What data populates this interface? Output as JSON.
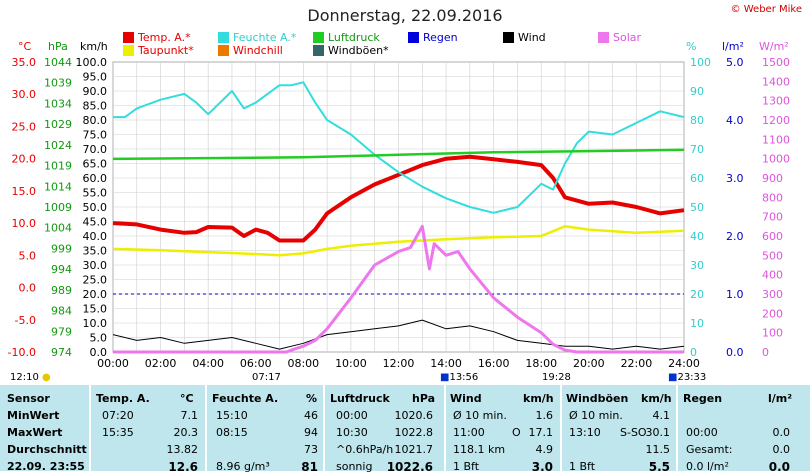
{
  "header": {
    "title": "Donnerstag, 22.09.2016",
    "copyright": "© Weber Mike"
  },
  "legend": [
    {
      "label": "Temp. A.*",
      "color": "#e60000"
    },
    {
      "label": "Feuchte A.*",
      "color": "#33dddd"
    },
    {
      "label": "Luftdruck",
      "color": "#22cc22"
    },
    {
      "label": "Regen",
      "color": "#0000dd"
    },
    {
      "label": "Wind",
      "color": "#000000"
    },
    {
      "label": "Solar",
      "color": "#ee77ee"
    },
    {
      "label": "Taupunkt*",
      "color": "#eeee00"
    },
    {
      "label": "Windchill",
      "color": "#ee7700"
    },
    {
      "label": "Windböen*",
      "color": "#336666"
    }
  ],
  "units": {
    "temp": "°C",
    "pressure": "hPa",
    "wind": "km/h",
    "humidity": "%",
    "rain": "l/m²",
    "solar": "W/m²"
  },
  "axes": {
    "temp_ticks": [
      "35.0",
      "30.0",
      "25.0",
      "20.0",
      "15.0",
      "10.0",
      "5.0",
      "0.0",
      "-5.0",
      "-10.0"
    ],
    "pressure_ticks": [
      "1044",
      "1039",
      "1034",
      "1029",
      "1024",
      "1019",
      "1014",
      "1009",
      "1004",
      "999",
      "994",
      "989",
      "984",
      "979",
      "974"
    ],
    "wind_ticks": [
      "100.0",
      "95.0",
      "90.0",
      "85.0",
      "80.0",
      "75.0",
      "70.0",
      "65.0",
      "60.0",
      "55.0",
      "50.0",
      "45.0",
      "40.0",
      "35.0",
      "30.0",
      "25.0",
      "20.0",
      "15.0",
      "10.0",
      "5.0",
      "0.0"
    ],
    "humidity_ticks": [
      "100",
      "90",
      "80",
      "70",
      "60",
      "50",
      "40",
      "30",
      "20",
      "10",
      "0"
    ],
    "rain_ticks": [
      "5.0",
      "4.0",
      "3.0",
      "2.0",
      "1.0",
      "0.0"
    ],
    "solar_ticks": [
      "1500",
      "1400",
      "1300",
      "1200",
      "1100",
      "1000",
      "900",
      "800",
      "700",
      "600",
      "500",
      "400",
      "300",
      "200",
      "100",
      "0"
    ],
    "x_ticks": [
      "00:00",
      "02:00",
      "04:00",
      "06:00",
      "08:00",
      "10:00",
      "12:00",
      "14:00",
      "16:00",
      "18:00",
      "20:00",
      "22:00",
      "24:00"
    ]
  },
  "markers": {
    "sunrise_left": "12:10",
    "sunrise": "07:17",
    "noon": "13:56",
    "sunset": "19:28",
    "moon": "23:33"
  },
  "chart_data": {
    "type": "line",
    "title": "Donnerstag, 22.09.2016",
    "x_unit": "hours",
    "xlim": [
      0,
      24
    ],
    "series": [
      {
        "name": "Temp. A.*",
        "unit": "°C",
        "ylim": [
          -10,
          35
        ],
        "x": [
          0,
          1,
          2,
          3,
          3.5,
          4,
          5,
          5.5,
          6,
          6.5,
          7,
          8,
          8.5,
          9,
          10,
          11,
          12,
          13,
          14,
          15,
          16,
          17,
          18,
          18.5,
          19,
          20,
          21,
          22,
          23,
          24
        ],
        "y": [
          10,
          9.8,
          9,
          8.5,
          8.6,
          9.4,
          9.3,
          8,
          9,
          8.5,
          7.3,
          7.3,
          9,
          11.5,
          14,
          16,
          17.5,
          19,
          20,
          20.3,
          19.9,
          19.5,
          19,
          17,
          14,
          13,
          13.2,
          12.5,
          11.5,
          12
        ]
      },
      {
        "name": "Feuchte A.*",
        "unit": "%",
        "ylim": [
          0,
          100
        ],
        "x": [
          0,
          0.5,
          1,
          2,
          3,
          3.5,
          4,
          5,
          5.5,
          6,
          7,
          7.5,
          8,
          8.5,
          9,
          10,
          11,
          12,
          13,
          14,
          15,
          16,
          17,
          18,
          18.5,
          19,
          19.5,
          20,
          21,
          22,
          23,
          24
        ],
        "y": [
          81,
          81,
          84,
          87,
          89,
          86,
          82,
          90,
          84,
          86,
          92,
          92,
          93,
          86,
          80,
          75,
          68,
          62,
          57,
          53,
          50,
          48,
          50,
          58,
          56,
          65,
          72,
          76,
          75,
          79,
          83,
          81
        ]
      },
      {
        "name": "Luftdruck",
        "unit": "hPa",
        "ylim": [
          974,
          1044
        ],
        "x": [
          0,
          4,
          8,
          12,
          16,
          20,
          24
        ],
        "y": [
          1020.6,
          1020.8,
          1021,
          1021.6,
          1022.2,
          1022.5,
          1022.8
        ]
      },
      {
        "name": "Taupunkt*",
        "unit": "°C",
        "ylim": [
          -10,
          35
        ],
        "x": [
          0,
          2,
          4,
          6,
          7,
          8,
          9,
          10,
          12,
          14,
          16,
          18,
          19,
          20,
          22,
          24
        ],
        "y": [
          6,
          5.8,
          5.5,
          5.2,
          5,
          5.3,
          6,
          6.5,
          7.1,
          7.5,
          7.8,
          8,
          9.5,
          9,
          8.5,
          8.8
        ]
      },
      {
        "name": "Wind",
        "unit": "km/h",
        "ylim": [
          0,
          100
        ],
        "x": [
          0,
          1,
          2,
          3,
          4,
          5,
          6,
          7,
          8,
          9,
          10,
          11,
          12,
          13,
          14,
          15,
          16,
          17,
          18,
          19,
          20,
          21,
          22,
          23,
          24
        ],
        "y": [
          6,
          4,
          5,
          3,
          4,
          5,
          3,
          1,
          3,
          6,
          7,
          8,
          9,
          11,
          8,
          9,
          7,
          4,
          3,
          2,
          2,
          1,
          2,
          1,
          2
        ]
      },
      {
        "name": "Solar",
        "unit": "W/m²",
        "ylim": [
          0,
          1500
        ],
        "x": [
          0,
          7.3,
          7.5,
          8,
          8.5,
          9,
          10,
          11,
          12,
          12.5,
          13,
          13.3,
          13.5,
          14,
          14.5,
          15,
          16,
          17,
          18,
          18.5,
          19,
          19.5,
          24
        ],
        "y": [
          0,
          0,
          10,
          30,
          60,
          120,
          280,
          450,
          520,
          540,
          650,
          430,
          560,
          500,
          520,
          430,
          280,
          180,
          100,
          40,
          10,
          0,
          0
        ]
      }
    ]
  },
  "table": {
    "headers": {
      "sensor": "Sensor",
      "temp": "Temp. A.",
      "temp_unit": "°C",
      "hum": "Feuchte A.",
      "hum_unit": "%",
      "press": "Luftdruck",
      "press_unit": "hPa",
      "wind": "Wind",
      "wind_unit": "km/h",
      "gust": "Windböen",
      "gust_unit": "km/h",
      "rain": "Regen",
      "rain_unit": "l/m²"
    },
    "rows": [
      {
        "label": "MinWert",
        "temp_time": "07:20",
        "temp_val": "7.1",
        "hum_time": "15:10",
        "hum_val": "46",
        "press_time": "00:00",
        "press_val": "1020.6",
        "wind_label": "Ø 10 min.",
        "wind_val": "1.6",
        "gust_label": "Ø 10 min.",
        "gust_val": "4.1",
        "rain_time": "",
        "rain_val": ""
      },
      {
        "label": "MaxWert",
        "temp_time": "15:35",
        "temp_val": "20.3",
        "hum_time": "08:15",
        "hum_val": "94",
        "press_time": "10:30",
        "press_val": "1022.8",
        "wind_label": "11:00",
        "wind_dir": "O",
        "wind_val": "17.1",
        "gust_label": "13:10",
        "gust_dir": "S-SO",
        "gust_val": "30.1",
        "rain_time": "00:00",
        "rain_val": "0.0"
      },
      {
        "label": "Durchschnitt",
        "temp_time": "",
        "temp_val": "13.82",
        "hum_time": "",
        "hum_val": "73",
        "press_time": "^0.6hPa/h",
        "press_val": "1021.7",
        "wind_label": "118.1 km",
        "wind_val": "4.9",
        "gust_label": "",
        "gust_val": "11.5",
        "rain_time": "Gesamt:",
        "rain_val": "0.0"
      },
      {
        "label": "22.09. 23:55",
        "temp_time": "",
        "temp_val": "12.6",
        "hum_time": "8.96 g/m³",
        "hum_val": "81",
        "press_time": "sonnig",
        "press_val": "1022.6",
        "wind_label": "1 Bft",
        "wind_val": "3.0",
        "gust_label": "1 Bft",
        "gust_val": "5.5",
        "rain_time": "0.0 l/m²",
        "rain_val": "0.0"
      }
    ]
  }
}
